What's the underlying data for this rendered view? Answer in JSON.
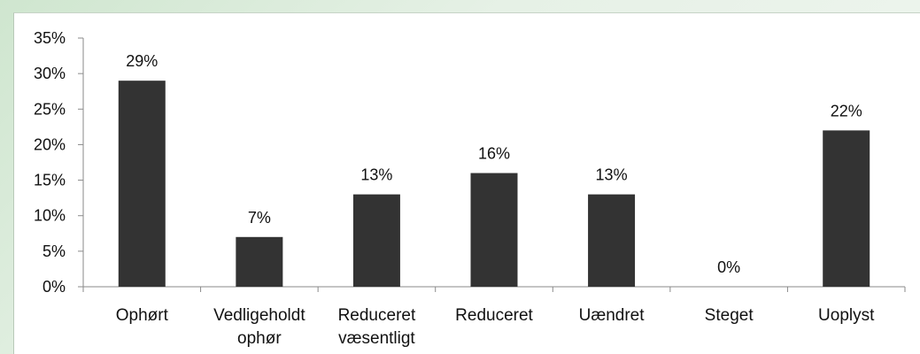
{
  "chart_data": {
    "type": "bar",
    "categories": [
      [
        "Ophørt"
      ],
      [
        "Vedligeholdt",
        "ophør"
      ],
      [
        "Reduceret",
        "væsentligt"
      ],
      [
        "Reduceret"
      ],
      [
        "Uændret"
      ],
      [
        "Steget"
      ],
      [
        "Uoplyst"
      ]
    ],
    "values": [
      29,
      7,
      13,
      16,
      13,
      0,
      22
    ],
    "data_labels": [
      "29%",
      "7%",
      "13%",
      "16%",
      "13%",
      "0%",
      "22%"
    ],
    "yticks": [
      0,
      5,
      10,
      15,
      20,
      25,
      30,
      35
    ],
    "ytick_labels": [
      "0%",
      "5%",
      "10%",
      "15%",
      "20%",
      "25%",
      "30%",
      "35%"
    ],
    "ylim": [
      0,
      35
    ],
    "title": "",
    "xlabel": "",
    "ylabel": "",
    "grid": false,
    "bar_color": "#333333"
  }
}
